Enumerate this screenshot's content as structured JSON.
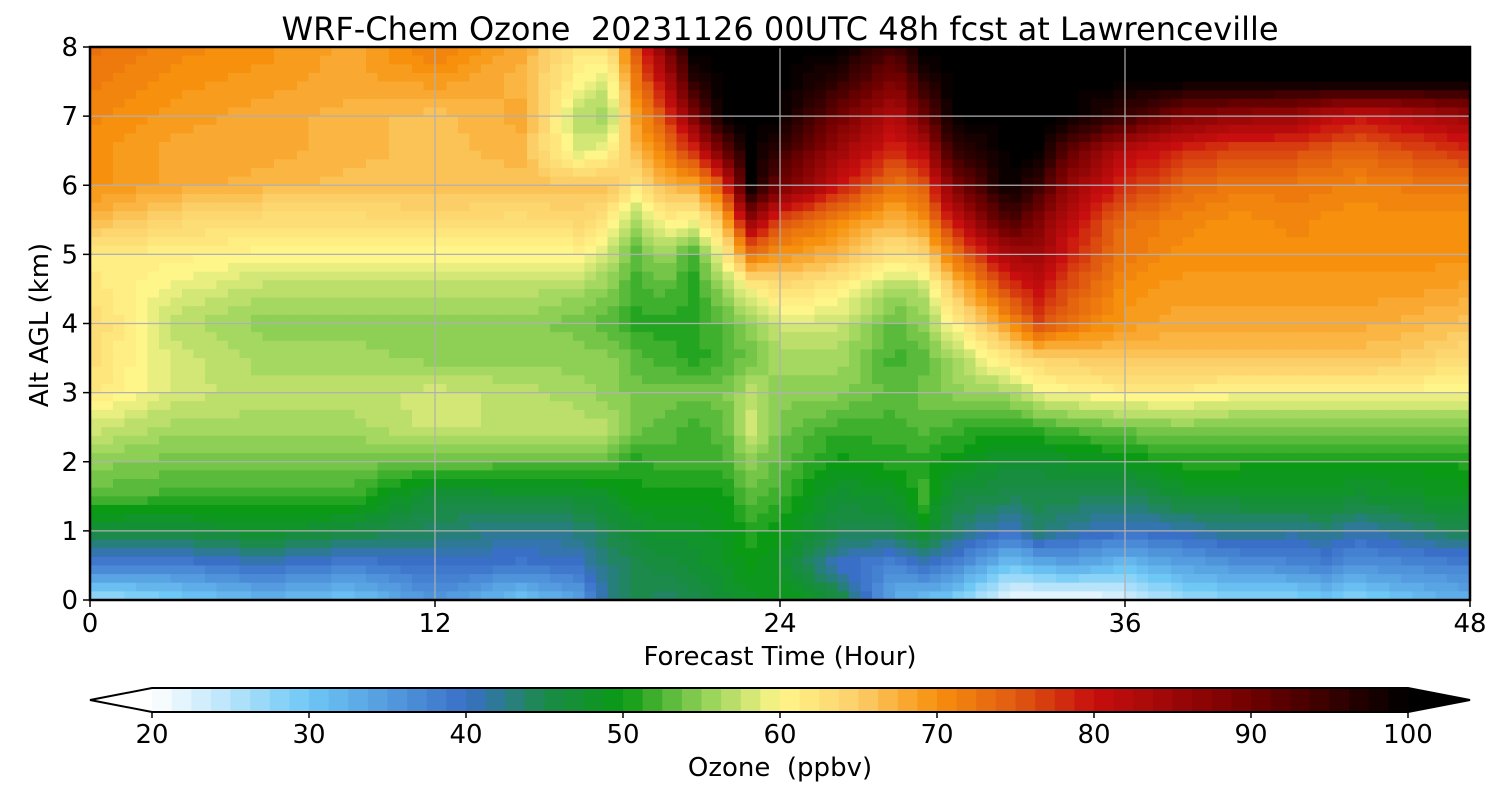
{
  "chart_data": {
    "type": "heatmap",
    "title": "WRF-Chem Ozone  20231126 00UTC 48h fcst at Lawrenceville",
    "xlabel": "Forecast Time (Hour)",
    "ylabel": "Alt AGL (km)",
    "x_ticks": [
      "0",
      "12",
      "24",
      "36",
      "48"
    ],
    "y_ticks": [
      "0",
      "1",
      "2",
      "3",
      "4",
      "5",
      "6",
      "7",
      "8"
    ],
    "xlim": [
      0,
      48
    ],
    "ylim": [
      0,
      8
    ],
    "grid": true,
    "colorbar": {
      "label": "Ozone  (ppbv)",
      "ticks": [
        "20",
        "30",
        "40",
        "50",
        "60",
        "70",
        "80",
        "90",
        "100"
      ],
      "range": [
        20,
        100
      ],
      "extend": "both",
      "stops": [
        {
          "value": 20,
          "color": "#ffffff"
        },
        {
          "value": 30,
          "color": "#6ec8f5"
        },
        {
          "value": 40,
          "color": "#3a6fc8"
        },
        {
          "value": 45,
          "color": "#1b8a4a"
        },
        {
          "value": 50,
          "color": "#0a9a14"
        },
        {
          "value": 55,
          "color": "#8ed055"
        },
        {
          "value": 60,
          "color": "#fff68a"
        },
        {
          "value": 65,
          "color": "#fcce68"
        },
        {
          "value": 70,
          "color": "#f7900c"
        },
        {
          "value": 75,
          "color": "#e05a10"
        },
        {
          "value": 80,
          "color": "#c80e0e"
        },
        {
          "value": 90,
          "color": "#700000"
        },
        {
          "value": 100,
          "color": "#000000"
        }
      ]
    },
    "hours": [
      0,
      3,
      6,
      9,
      12,
      15,
      17,
      18,
      19,
      20,
      21,
      22,
      23,
      24,
      26,
      28,
      29,
      30,
      32,
      33,
      34,
      36,
      38,
      40,
      42,
      43,
      44,
      46,
      48
    ],
    "altitudes_km": [
      0,
      0.5,
      1,
      1.5,
      2,
      2.5,
      3,
      3.5,
      4,
      4.5,
      5,
      5.5,
      6,
      6.5,
      7,
      7.5,
      8
    ],
    "ozone_ppbv": [
      [
        26,
        29,
        32,
        30,
        36,
        30,
        34,
        42,
        45,
        44,
        45,
        47,
        48,
        50,
        47,
        33,
        31,
        29,
        21,
        20,
        20,
        22,
        27,
        28,
        28,
        30,
        28,
        31,
        33
      ],
      [
        38,
        38,
        40,
        38,
        40,
        39,
        40,
        43,
        45,
        46,
        47,
        48,
        50,
        48,
        40,
        37,
        40,
        38,
        30,
        32,
        34,
        31,
        34,
        36,
        37,
        38,
        36,
        37,
        38
      ],
      [
        46,
        46,
        48,
        46,
        44,
        42,
        43,
        45,
        47,
        48,
        48,
        49,
        51,
        50,
        45,
        45,
        48,
        44,
        40,
        44,
        42,
        40,
        41,
        43,
        42,
        43,
        41,
        43,
        45
      ],
      [
        53,
        52,
        52,
        52,
        46,
        47,
        47,
        48,
        50,
        50,
        50,
        50,
        53,
        52,
        47,
        48,
        52,
        46,
        45,
        45,
        45,
        44,
        47,
        47,
        48,
        48,
        47,
        48,
        49
      ],
      [
        55,
        54,
        54,
        54,
        54,
        53,
        53,
        53,
        51,
        52,
        52,
        52,
        55,
        53,
        50,
        51,
        51,
        50,
        47,
        47,
        48,
        49,
        51,
        51,
        50,
        50,
        50,
        50,
        51
      ],
      [
        58,
        56,
        56,
        56,
        58,
        57,
        57,
        57,
        54,
        53,
        52,
        53,
        58,
        54,
        52,
        52,
        53,
        52,
        51,
        52,
        53,
        54,
        55,
        54,
        54,
        54,
        54,
        54,
        55
      ],
      [
        62,
        58,
        57,
        57,
        58,
        57,
        56,
        55,
        54,
        54,
        54,
        54,
        57,
        55,
        55,
        53,
        54,
        55,
        56,
        59,
        60,
        61,
        61,
        60,
        60,
        60,
        60,
        60,
        59
      ],
      [
        63,
        58,
        56,
        56,
        55,
        55,
        55,
        55,
        53,
        52,
        51,
        52,
        54,
        56,
        56,
        52,
        53,
        56,
        62,
        64,
        65,
        66,
        66,
        66,
        66,
        66,
        66,
        65,
        63
      ],
      [
        64,
        57,
        55,
        55,
        55,
        55,
        54,
        53,
        51,
        51,
        51,
        53,
        55,
        58,
        58,
        53,
        55,
        60,
        70,
        76,
        73,
        69,
        68,
        68,
        68,
        68,
        68,
        67,
        66
      ],
      [
        62,
        59,
        57,
        57,
        57,
        57,
        56,
        55,
        52,
        53,
        51,
        55,
        60,
        63,
        61,
        56,
        57,
        65,
        77,
        80,
        76,
        70,
        69,
        69,
        69,
        69,
        69,
        69,
        68
      ],
      [
        61,
        61,
        60,
        60,
        60,
        60,
        60,
        58,
        53,
        56,
        52,
        60,
        72,
        70,
        67,
        62,
        64,
        72,
        84,
        85,
        79,
        72,
        70,
        70,
        70,
        70,
        70,
        70,
        70
      ],
      [
        67,
        64,
        63,
        63,
        64,
        63,
        64,
        62,
        56,
        61,
        60,
        66,
        86,
        76,
        71,
        67,
        70,
        80,
        94,
        88,
        82,
        73,
        71,
        70,
        71,
        70,
        70,
        70,
        70
      ],
      [
        70,
        68,
        67,
        66,
        66,
        66,
        66,
        66,
        62,
        67,
        68,
        75,
        100,
        90,
        80,
        72,
        75,
        88,
        100,
        95,
        86,
        78,
        74,
        72,
        72,
        72,
        71,
        72,
        72
      ],
      [
        70,
        68,
        68,
        67,
        66,
        67,
        58,
        60,
        67,
        72,
        78,
        90,
        100,
        95,
        85,
        78,
        82,
        95,
        100,
        100,
        92,
        82,
        78,
        76,
        76,
        75,
        74,
        76,
        78
      ],
      [
        71,
        69,
        68,
        67,
        66,
        68,
        57,
        55,
        69,
        76,
        88,
        100,
        100,
        100,
        90,
        82,
        90,
        100,
        100,
        100,
        100,
        95,
        88,
        86,
        85,
        82,
        80,
        82,
        85
      ],
      [
        72,
        70,
        69,
        68,
        69,
        67,
        60,
        58,
        72,
        82,
        96,
        100,
        100,
        100,
        96,
        88,
        96,
        100,
        100,
        100,
        100,
        100,
        100,
        100,
        100,
        100,
        100,
        100,
        100
      ],
      [
        73,
        71,
        70,
        68,
        72,
        68,
        62,
        62,
        75,
        88,
        100,
        100,
        100,
        100,
        100,
        94,
        100,
        100,
        100,
        100,
        100,
        100,
        100,
        100,
        100,
        100,
        100,
        100,
        100
      ]
    ]
  }
}
